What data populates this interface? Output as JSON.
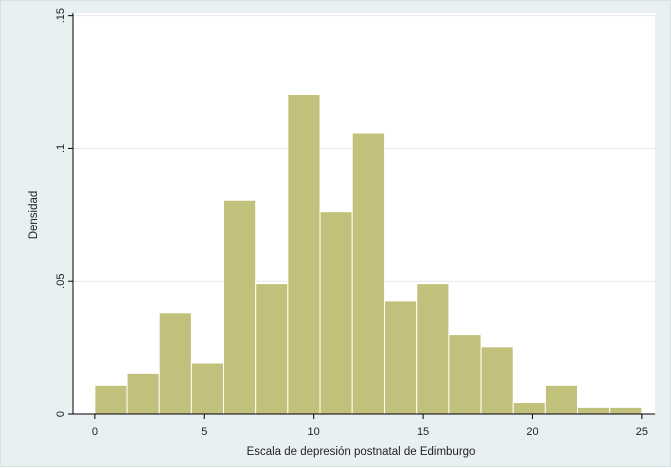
{
  "chart_data": {
    "type": "bar",
    "title": "",
    "xlabel": "Escala de depresión postnatal de Edimburgo",
    "ylabel": "Densidad",
    "xlim": [
      -1,
      25.6
    ],
    "ylim": [
      0,
      0.151
    ],
    "x_ticks": [
      0,
      5,
      10,
      15,
      20,
      25
    ],
    "x_tick_labels": [
      "0",
      "5",
      "10",
      "15",
      "20",
      "25"
    ],
    "y_ticks": [
      0,
      0.05,
      0.1,
      0.15
    ],
    "y_tick_labels": [
      "0",
      ".05",
      ".1",
      ".15"
    ],
    "grid": true,
    "bar_color": "#c2c17b",
    "bar_edge_color": "#ffffff",
    "bins": [
      {
        "x0": 0.0,
        "x1": 1.47,
        "density": 0.0108
      },
      {
        "x0": 1.47,
        "x1": 2.94,
        "density": 0.0153
      },
      {
        "x0": 2.94,
        "x1": 4.41,
        "density": 0.0381
      },
      {
        "x0": 4.41,
        "x1": 5.88,
        "density": 0.0192
      },
      {
        "x0": 5.88,
        "x1": 7.35,
        "density": 0.0805
      },
      {
        "x0": 7.35,
        "x1": 8.82,
        "density": 0.0491
      },
      {
        "x0": 8.82,
        "x1": 10.29,
        "density": 0.1203
      },
      {
        "x0": 10.29,
        "x1": 11.76,
        "density": 0.0762
      },
      {
        "x0": 11.76,
        "x1": 13.24,
        "density": 0.1058
      },
      {
        "x0": 13.24,
        "x1": 14.71,
        "density": 0.0426
      },
      {
        "x0": 14.71,
        "x1": 16.18,
        "density": 0.0491
      },
      {
        "x0": 16.18,
        "x1": 17.65,
        "density": 0.0299
      },
      {
        "x0": 17.65,
        "x1": 19.12,
        "density": 0.0253
      },
      {
        "x0": 19.12,
        "x1": 20.59,
        "density": 0.0043
      },
      {
        "x0": 20.59,
        "x1": 22.06,
        "density": 0.0108
      },
      {
        "x0": 22.06,
        "x1": 23.53,
        "density": 0.0025
      },
      {
        "x0": 23.53,
        "x1": 25.0,
        "density": 0.0025
      }
    ]
  }
}
